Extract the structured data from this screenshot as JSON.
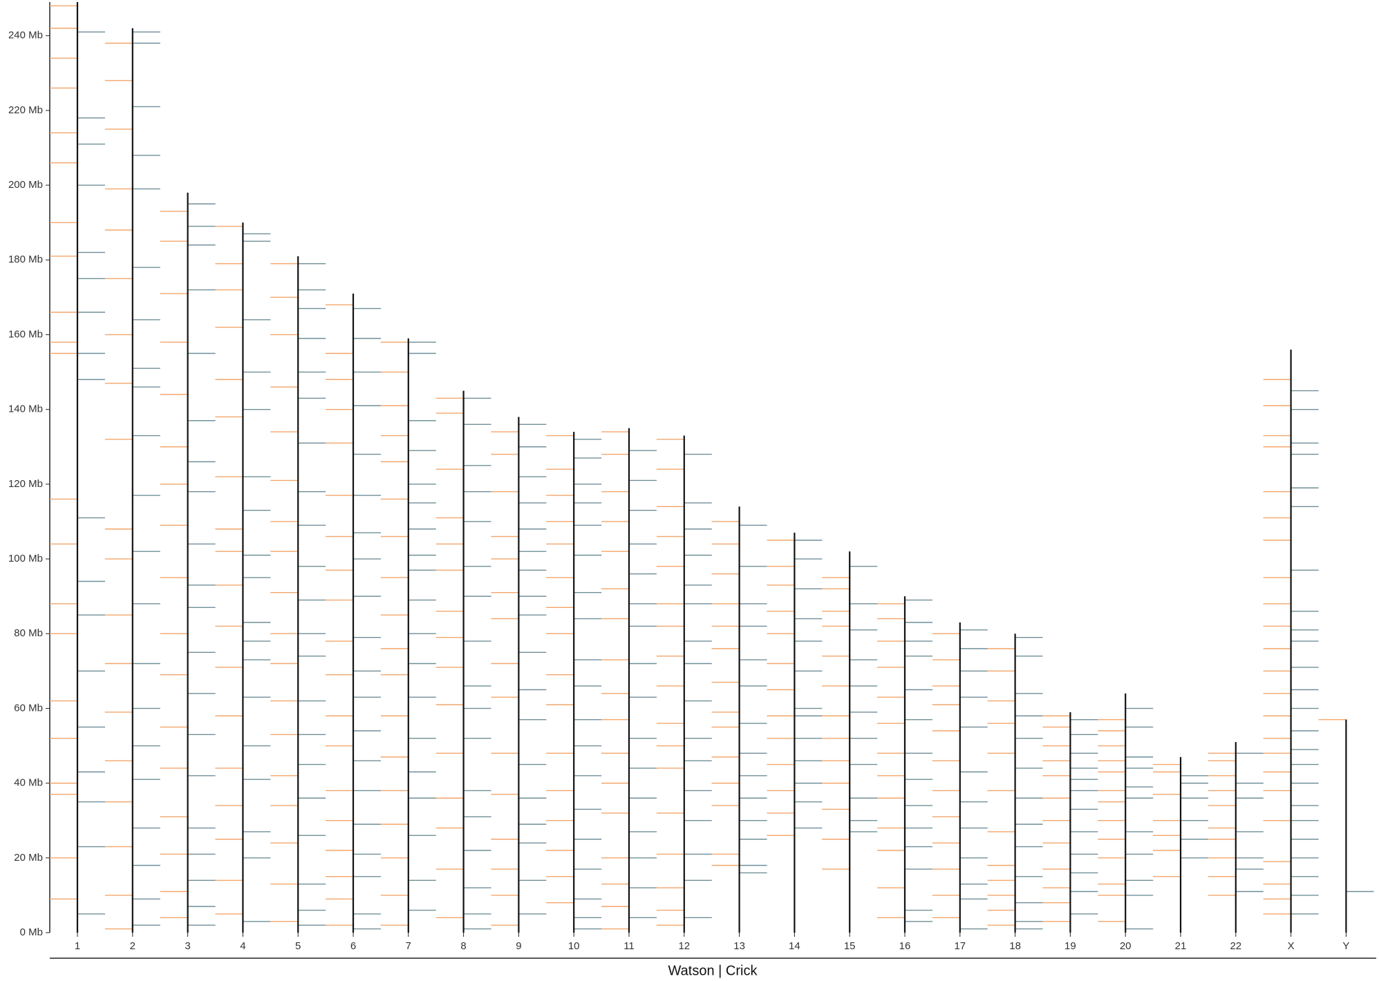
{
  "chart_data": {
    "type": "karyogram",
    "xlabel": "Watson | Crick",
    "categories": [
      "1",
      "2",
      "3",
      "4",
      "5",
      "6",
      "7",
      "8",
      "9",
      "10",
      "11",
      "12",
      "13",
      "14",
      "15",
      "16",
      "17",
      "18",
      "19",
      "20",
      "21",
      "22",
      "X",
      "Y"
    ],
    "lengths": [
      249,
      242,
      198,
      190,
      181,
      171,
      159,
      145,
      138,
      134,
      135,
      133,
      114,
      107,
      102,
      90,
      83,
      80,
      59,
      64,
      47,
      51,
      156,
      57
    ],
    "ylim": [
      0,
      249
    ],
    "yticks": [
      {
        "value": 0,
        "label": "0 Mb"
      },
      {
        "value": 20,
        "label": "20 Mb"
      },
      {
        "value": 40,
        "label": "40 Mb"
      },
      {
        "value": 60,
        "label": "60 Mb"
      },
      {
        "value": 80,
        "label": "80 Mb"
      },
      {
        "value": 100,
        "label": "100 Mb"
      },
      {
        "value": 120,
        "label": "120 Mb"
      },
      {
        "value": 140,
        "label": "140 Mb"
      },
      {
        "value": 160,
        "label": "160 Mb"
      },
      {
        "value": 180,
        "label": "180 Mb"
      },
      {
        "value": 200,
        "label": "200 Mb"
      },
      {
        "value": 220,
        "label": "220 Mb"
      },
      {
        "value": 240,
        "label": "240 Mb"
      }
    ],
    "series": [
      {
        "color": "#f3a56a",
        "values": [
          [
            248,
            242,
            234,
            226,
            214,
            206,
            190,
            181,
            166,
            158,
            155,
            116,
            104,
            88,
            80,
            62,
            52,
            40,
            37,
            20,
            9
          ],
          [
            238,
            228,
            215,
            199,
            188,
            175,
            160,
            147,
            132,
            108,
            100,
            85,
            72,
            59,
            46,
            35,
            23,
            10,
            1
          ],
          [
            193,
            185,
            171,
            158,
            144,
            130,
            120,
            109,
            95,
            80,
            69,
            55,
            44,
            31,
            21,
            11,
            4
          ],
          [
            189,
            179,
            172,
            162,
            148,
            138,
            122,
            108,
            102,
            93,
            82,
            71,
            58,
            44,
            34,
            25,
            14,
            5
          ],
          [
            179,
            170,
            160,
            146,
            134,
            121,
            110,
            102,
            91,
            80,
            72,
            62,
            53,
            42,
            34,
            24,
            13,
            3
          ],
          [
            168,
            155,
            148,
            140,
            131,
            117,
            106,
            97,
            89,
            78,
            69,
            58,
            50,
            38,
            30,
            22,
            15,
            9,
            2
          ],
          [
            158,
            150,
            141,
            133,
            126,
            116,
            106,
            95,
            85,
            76,
            69,
            58,
            47,
            38,
            29,
            20,
            10,
            2
          ],
          [
            143,
            139,
            124,
            111,
            104,
            97,
            86,
            79,
            71,
            61,
            48,
            36,
            28,
            17,
            4
          ],
          [
            134,
            128,
            118,
            106,
            100,
            91,
            84,
            72,
            63,
            48,
            37,
            25,
            17,
            10,
            2
          ],
          [
            133,
            124,
            117,
            110,
            104,
            95,
            87,
            80,
            69,
            61,
            48,
            38,
            30,
            22,
            15,
            8
          ],
          [
            134,
            128,
            118,
            110,
            102,
            92,
            84,
            73,
            64,
            57,
            48,
            40,
            32,
            20,
            13,
            7,
            1
          ],
          [
            132,
            124,
            114,
            106,
            98,
            88,
            82,
            74,
            66,
            56,
            50,
            44,
            32,
            21,
            12,
            6,
            2
          ],
          [
            110,
            104,
            96,
            88,
            82,
            76,
            67,
            59,
            55,
            47,
            40,
            34,
            21,
            18
          ],
          [
            105,
            98,
            93,
            86,
            80,
            72,
            65,
            58,
            52,
            45,
            38,
            32,
            26
          ],
          [
            95,
            92,
            86,
            82,
            74,
            66,
            58,
            52,
            46,
            40,
            33,
            25,
            17
          ],
          [
            88,
            84,
            78,
            71,
            63,
            56,
            48,
            42,
            36,
            28,
            22,
            12,
            4
          ],
          [
            80,
            73,
            66,
            61,
            54,
            46,
            38,
            31,
            24,
            17,
            10,
            4
          ],
          [
            76,
            70,
            62,
            56,
            48,
            38,
            27,
            18,
            14,
            10,
            6,
            2
          ],
          [
            58,
            55,
            50,
            46,
            42,
            36,
            30,
            24,
            17,
            12,
            8,
            3
          ],
          [
            57,
            54,
            50,
            46,
            43,
            38,
            35,
            30,
            25,
            20,
            13,
            10,
            3
          ],
          [
            45,
            43,
            37,
            30,
            26,
            22,
            15
          ],
          [
            48,
            46,
            42,
            38,
            34,
            28,
            25,
            20,
            15,
            10
          ],
          [
            148,
            141,
            133,
            130,
            118,
            111,
            105,
            95,
            88,
            82,
            76,
            70,
            64,
            58,
            52,
            48,
            43,
            38,
            30,
            19,
            13,
            9,
            5
          ],
          [
            57
          ]
        ]
      },
      {
        "color": "#6f8e97",
        "values": [
          [
            241,
            218,
            211,
            200,
            182,
            175,
            166,
            155,
            148,
            111,
            94,
            85,
            70,
            55,
            43,
            35,
            23,
            5
          ],
          [
            241,
            238,
            221,
            208,
            199,
            178,
            164,
            151,
            146,
            133,
            117,
            102,
            88,
            72,
            60,
            50,
            41,
            28,
            18,
            9,
            2
          ],
          [
            195,
            189,
            184,
            172,
            155,
            137,
            126,
            118,
            104,
            93,
            87,
            75,
            64,
            53,
            42,
            28,
            21,
            14,
            7,
            2
          ],
          [
            187,
            185,
            164,
            150,
            140,
            122,
            113,
            101,
            95,
            83,
            78,
            73,
            63,
            50,
            41,
            27,
            20,
            3
          ],
          [
            179,
            172,
            167,
            159,
            150,
            143,
            131,
            118,
            109,
            98,
            89,
            80,
            74,
            62,
            53,
            45,
            36,
            26,
            13,
            6,
            2
          ],
          [
            167,
            159,
            150,
            141,
            128,
            117,
            107,
            100,
            90,
            79,
            70,
            63,
            54,
            46,
            38,
            29,
            21,
            15,
            5,
            1
          ],
          [
            158,
            155,
            137,
            129,
            120,
            115,
            108,
            101,
            97,
            89,
            80,
            72,
            63,
            52,
            43,
            36,
            26,
            14,
            6
          ],
          [
            143,
            136,
            125,
            118,
            110,
            98,
            90,
            78,
            66,
            60,
            52,
            38,
            31,
            22,
            12,
            5,
            1
          ],
          [
            136,
            130,
            122,
            115,
            108,
            102,
            97,
            90,
            85,
            75,
            65,
            57,
            45,
            36,
            29,
            24,
            14,
            5
          ],
          [
            132,
            127,
            120,
            115,
            109,
            101,
            91,
            84,
            73,
            66,
            57,
            50,
            42,
            33,
            25,
            17,
            9,
            4,
            1
          ],
          [
            129,
            121,
            113,
            104,
            96,
            88,
            82,
            72,
            63,
            52,
            44,
            36,
            27,
            20,
            12,
            4
          ],
          [
            128,
            115,
            108,
            101,
            93,
            88,
            78,
            72,
            62,
            52,
            46,
            38,
            30,
            21,
            14,
            4
          ],
          [
            109,
            98,
            88,
            82,
            73,
            66,
            56,
            48,
            42,
            36,
            30,
            25,
            18,
            16
          ],
          [
            105,
            100,
            92,
            84,
            78,
            70,
            60,
            58,
            52,
            46,
            40,
            35,
            28
          ],
          [
            98,
            88,
            81,
            73,
            66,
            59,
            52,
            45,
            36,
            30,
            27
          ],
          [
            89,
            83,
            78,
            74,
            65,
            57,
            48,
            41,
            34,
            28,
            23,
            17,
            6,
            3
          ],
          [
            81,
            76,
            70,
            63,
            55,
            43,
            35,
            28,
            20,
            13,
            9,
            1
          ],
          [
            79,
            74,
            64,
            58,
            52,
            44,
            36,
            29,
            23,
            15,
            8,
            3,
            1
          ],
          [
            57,
            53,
            48,
            44,
            41,
            38,
            33,
            27,
            21,
            16,
            11,
            5
          ],
          [
            60,
            55,
            47,
            44,
            39,
            36,
            27,
            21,
            14,
            10,
            1
          ],
          [
            42,
            40,
            36,
            30,
            25,
            20
          ],
          [
            48,
            40,
            36,
            27,
            20,
            17,
            11
          ],
          [
            145,
            140,
            131,
            128,
            119,
            114,
            97,
            86,
            81,
            78,
            71,
            65,
            60,
            54,
            49,
            45,
            40,
            34,
            30,
            25,
            20,
            15,
            10,
            5
          ],
          [
            11
          ]
        ]
      }
    ]
  }
}
